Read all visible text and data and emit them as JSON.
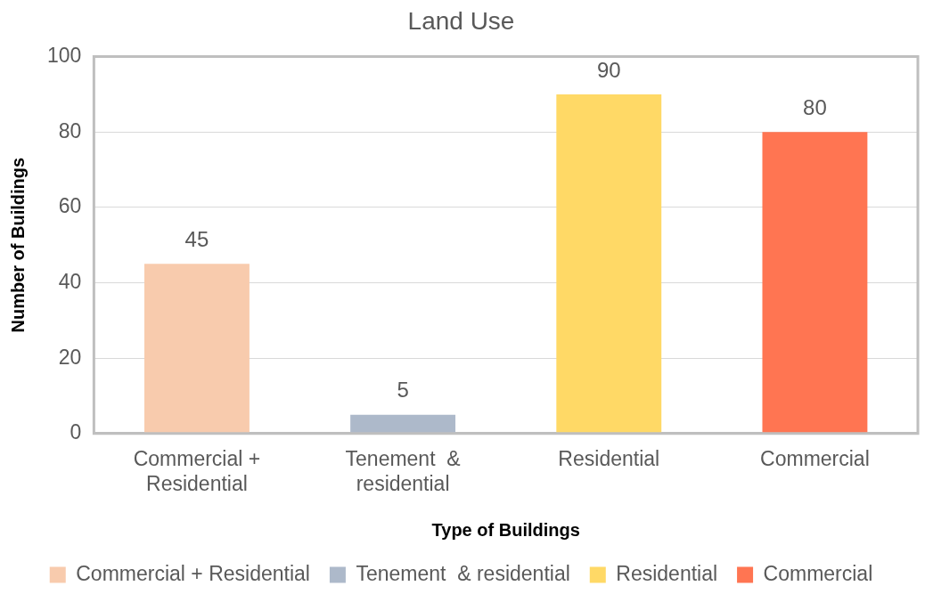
{
  "chart_data": {
    "type": "bar",
    "title": "Land Use",
    "xlabel": "Type of Buildings",
    "ylabel": "Number of Buildings",
    "categories": [
      "Commercial + Residential",
      "Tenement  & residential",
      "Residential",
      "Commercial"
    ],
    "series": [
      {
        "name": "Commercial + Residential",
        "color": "#f8cbad",
        "values": [
          45,
          null,
          null,
          null
        ]
      },
      {
        "name": "Tenement  & residential",
        "color": "#adb9ca",
        "values": [
          null,
          5,
          null,
          null
        ]
      },
      {
        "name": "Residential",
        "color": "#ffd966",
        "values": [
          null,
          null,
          90,
          null
        ]
      },
      {
        "name": "Commercial",
        "color": "#ff7552",
        "values": [
          null,
          null,
          null,
          80
        ]
      }
    ],
    "ylim": [
      0,
      100
    ],
    "yticks": [
      0,
      20,
      40,
      60,
      80,
      100
    ],
    "grid": "y",
    "data_labels": true,
    "legend": "bottom"
  }
}
